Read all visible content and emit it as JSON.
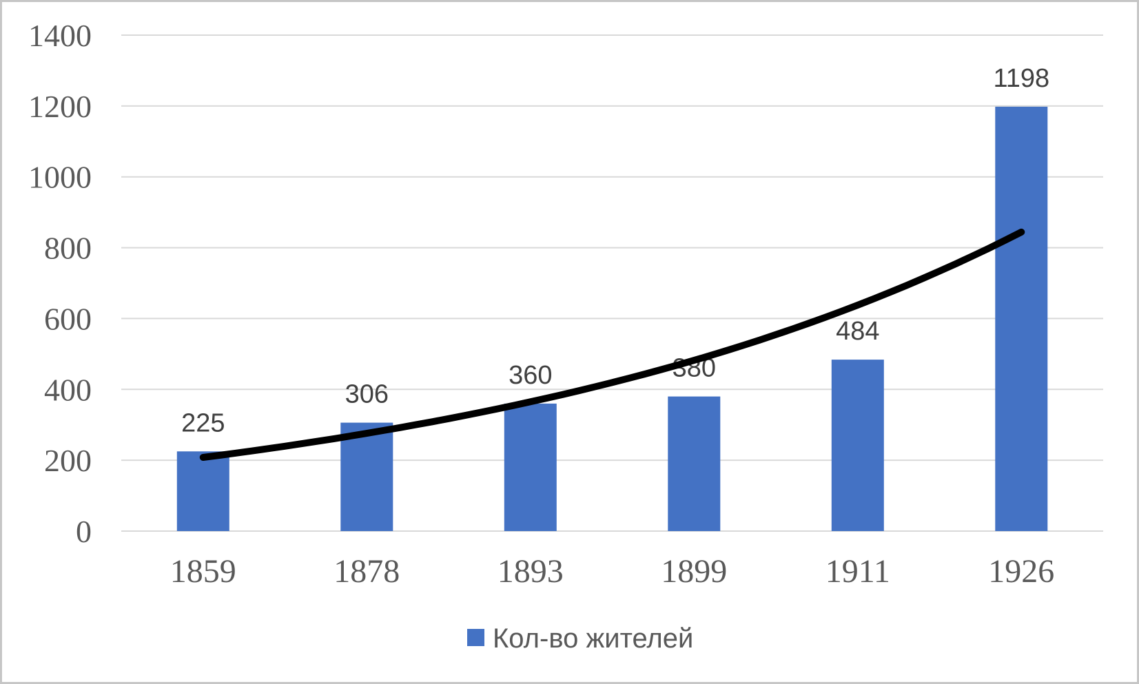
{
  "chart_data": {
    "type": "bar",
    "title": "",
    "xlabel": "",
    "ylabel": "",
    "categories": [
      "1859",
      "1878",
      "1893",
      "1899",
      "1911",
      "1926"
    ],
    "series": [
      {
        "name": "Кол-во жителей",
        "values": [
          225,
          306,
          360,
          380,
          484,
          1198
        ],
        "color": "#4472C4",
        "data_labels_shown": true
      }
    ],
    "trendline": {
      "shape": "exponential",
      "values_at_categories": [
        208,
        276,
        365,
        482,
        638,
        844
      ],
      "color": "#000000",
      "stroke_width": 10
    },
    "ylim": [
      0,
      1400
    ],
    "yticks": [
      0,
      200,
      400,
      600,
      800,
      1000,
      1200,
      1400
    ],
    "grid": true,
    "legend": {
      "position": "bottom",
      "label": "Кол-во жителей",
      "swatch_color": "#4472C4"
    }
  },
  "colors": {
    "bar": "#4472C4",
    "trendline": "#000000",
    "gridline": "#D9D9D9",
    "axis_text": "#595959",
    "data_label_text": "#404040",
    "legend_text": "#595959",
    "frame_border": "#C6C6C6",
    "background": "#FFFFFF"
  }
}
